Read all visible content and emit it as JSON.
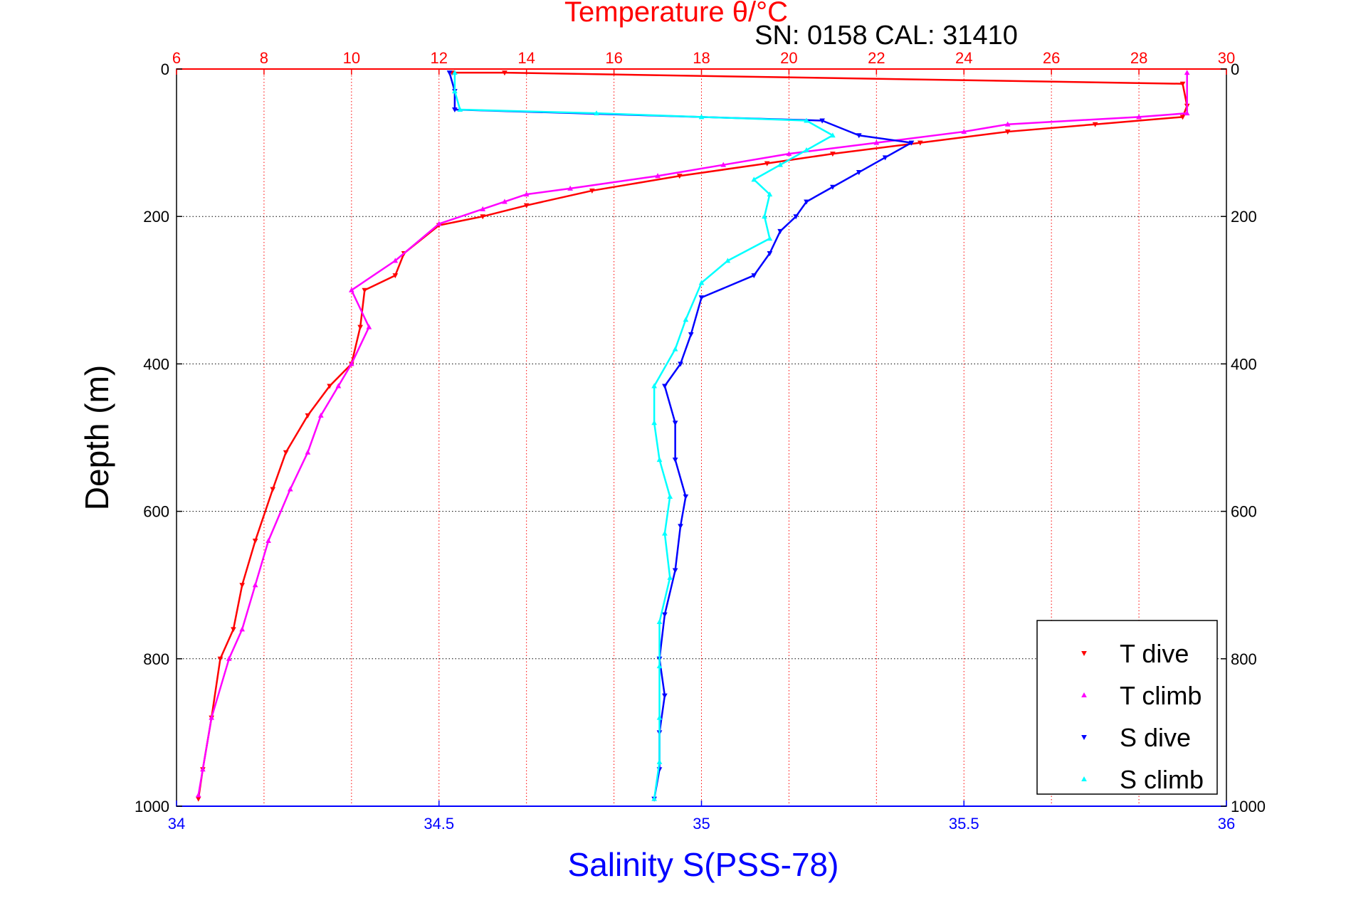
{
  "chart_data": {
    "type": "scatter",
    "title": "Temperature θ/°C",
    "subtitle": "SN: 0158  CAL: 31410",
    "xlabel_bottom": "Salinity S(PSS-78)",
    "xlabel_top": "Temperature θ/°C",
    "ylabel": "Depth (m)",
    "x_bottom": {
      "lim": [
        34,
        36
      ],
      "ticks": [
        34,
        34.5,
        35,
        35.5,
        36
      ],
      "tick_labels": [
        "34",
        "34.5",
        "35",
        "35.5",
        "36"
      ],
      "color": "#0000ff"
    },
    "x_top": {
      "lim": [
        6,
        30
      ],
      "ticks": [
        6,
        8,
        10,
        12,
        14,
        16,
        18,
        20,
        22,
        24,
        26,
        28,
        30
      ],
      "tick_labels": [
        "6",
        "8",
        "10",
        "12",
        "14",
        "16",
        "18",
        "20",
        "22",
        "24",
        "26",
        "28",
        "30"
      ],
      "color": "#ff0000"
    },
    "y": {
      "lim": [
        0,
        1000
      ],
      "reversed": true,
      "ticks": [
        0,
        200,
        400,
        600,
        800,
        1000
      ],
      "tick_labels": [
        "0",
        "200",
        "400",
        "600",
        "800",
        "1000"
      ]
    },
    "grid": true,
    "legend_position": "bottom-right",
    "series": [
      {
        "name": "T dive",
        "axis": "temperature",
        "color": "#ff0000",
        "marker": "triangle-down",
        "points": [
          [
            12.3,
            5
          ],
          [
            13.5,
            5
          ],
          [
            29.0,
            20
          ],
          [
            29.1,
            50
          ],
          [
            29.0,
            65
          ],
          [
            27.0,
            75
          ],
          [
            25.0,
            85
          ],
          [
            23.0,
            100
          ],
          [
            21.0,
            115
          ],
          [
            19.5,
            128
          ],
          [
            17.5,
            145
          ],
          [
            15.5,
            165
          ],
          [
            14.0,
            185
          ],
          [
            13.0,
            200
          ],
          [
            12.0,
            212
          ],
          [
            11.2,
            250
          ],
          [
            11.0,
            280
          ],
          [
            10.3,
            300
          ],
          [
            10.2,
            350
          ],
          [
            10.0,
            400
          ],
          [
            9.5,
            430
          ],
          [
            9.0,
            470
          ],
          [
            8.5,
            520
          ],
          [
            8.2,
            570
          ],
          [
            7.8,
            640
          ],
          [
            7.5,
            700
          ],
          [
            7.3,
            760
          ],
          [
            7.0,
            800
          ],
          [
            6.8,
            880
          ],
          [
            6.6,
            950
          ],
          [
            6.5,
            990
          ]
        ]
      },
      {
        "name": "T climb",
        "axis": "temperature",
        "color": "#ff00ff",
        "marker": "triangle-up",
        "points": [
          [
            29.1,
            5
          ],
          [
            29.1,
            60
          ],
          [
            28.0,
            65
          ],
          [
            25.0,
            75
          ],
          [
            24.0,
            85
          ],
          [
            22.0,
            100
          ],
          [
            20.0,
            115
          ],
          [
            18.5,
            130
          ],
          [
            17.0,
            145
          ],
          [
            15.0,
            162
          ],
          [
            14.0,
            170
          ],
          [
            13.5,
            180
          ],
          [
            13.0,
            190
          ],
          [
            12.0,
            210
          ],
          [
            11.0,
            260
          ],
          [
            10.0,
            300
          ],
          [
            10.4,
            350
          ],
          [
            10.0,
            400
          ],
          [
            9.7,
            430
          ],
          [
            9.3,
            470
          ],
          [
            9.0,
            520
          ],
          [
            8.6,
            570
          ],
          [
            8.1,
            640
          ],
          [
            7.8,
            700
          ],
          [
            7.5,
            760
          ],
          [
            7.2,
            800
          ],
          [
            6.8,
            880
          ],
          [
            6.6,
            950
          ],
          [
            6.5,
            985
          ]
        ]
      },
      {
        "name": "S dive",
        "axis": "salinity",
        "color": "#0000ff",
        "marker": "triangle-down",
        "points": [
          [
            34.52,
            5
          ],
          [
            34.53,
            30
          ],
          [
            34.53,
            55
          ],
          [
            35.23,
            70
          ],
          [
            35.3,
            90
          ],
          [
            35.4,
            100
          ],
          [
            35.35,
            120
          ],
          [
            35.3,
            140
          ],
          [
            35.25,
            160
          ],
          [
            35.2,
            180
          ],
          [
            35.18,
            200
          ],
          [
            35.15,
            220
          ],
          [
            35.13,
            250
          ],
          [
            35.1,
            280
          ],
          [
            35.0,
            310
          ],
          [
            34.98,
            360
          ],
          [
            34.96,
            400
          ],
          [
            34.93,
            430
          ],
          [
            34.95,
            480
          ],
          [
            34.95,
            530
          ],
          [
            34.97,
            580
          ],
          [
            34.96,
            620
          ],
          [
            34.95,
            680
          ],
          [
            34.93,
            740
          ],
          [
            34.92,
            800
          ],
          [
            34.93,
            850
          ],
          [
            34.92,
            900
          ],
          [
            34.92,
            950
          ],
          [
            34.91,
            990
          ]
        ]
      },
      {
        "name": "S climb",
        "axis": "salinity",
        "color": "#00ffff",
        "marker": "triangle-up",
        "points": [
          [
            34.53,
            5
          ],
          [
            34.53,
            30
          ],
          [
            34.54,
            55
          ],
          [
            34.8,
            60
          ],
          [
            35.0,
            65
          ],
          [
            35.2,
            70
          ],
          [
            35.25,
            90
          ],
          [
            35.2,
            110
          ],
          [
            35.15,
            130
          ],
          [
            35.1,
            150
          ],
          [
            35.13,
            170
          ],
          [
            35.12,
            200
          ],
          [
            35.13,
            230
          ],
          [
            35.05,
            260
          ],
          [
            35.0,
            290
          ],
          [
            34.97,
            340
          ],
          [
            34.95,
            380
          ],
          [
            34.91,
            430
          ],
          [
            34.91,
            480
          ],
          [
            34.92,
            530
          ],
          [
            34.94,
            580
          ],
          [
            34.93,
            630
          ],
          [
            34.94,
            690
          ],
          [
            34.92,
            750
          ],
          [
            34.92,
            810
          ],
          [
            34.92,
            880
          ],
          [
            34.92,
            940
          ],
          [
            34.91,
            990
          ]
        ]
      }
    ]
  }
}
